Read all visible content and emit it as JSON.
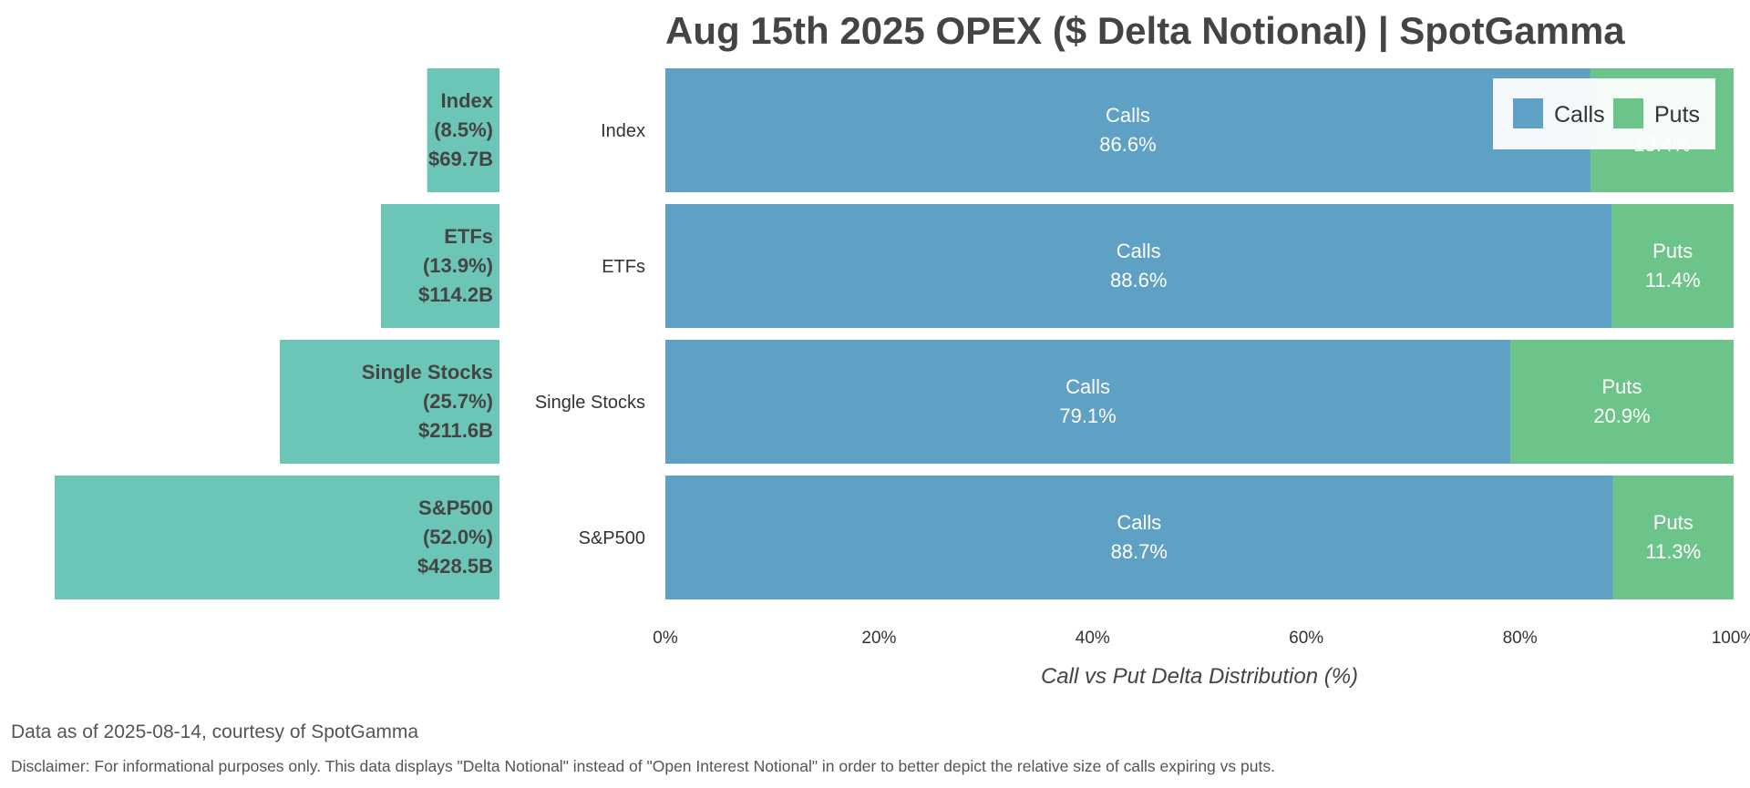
{
  "title": "Aug 15th 2025 OPEX ($ Delta Notional) | SpotGamma",
  "chart_data": [
    {
      "type": "bar",
      "orientation": "horizontal",
      "stacked": true,
      "title": "Aug 15th 2025 OPEX ($ Delta Notional) | SpotGamma",
      "categories": [
        "Index",
        "ETFs",
        "Single Stocks",
        "S&P500"
      ],
      "series": [
        {
          "name": "Calls",
          "color": "#5fa0c5",
          "values": [
            86.6,
            88.6,
            79.1,
            88.7
          ]
        },
        {
          "name": "Puts",
          "color": "#6cc48a",
          "values": [
            13.4,
            11.4,
            20.9,
            11.3
          ]
        }
      ],
      "segment_labels": [
        {
          "top": "Calls",
          "calls": "86.6%",
          "puts_top": "",
          "puts": "13.4%"
        },
        {
          "top": "Calls",
          "calls": "88.6%",
          "puts_top": "Puts",
          "puts": "11.4%"
        },
        {
          "top": "Calls",
          "calls": "79.1%",
          "puts_top": "Puts",
          "puts": "20.9%"
        },
        {
          "top": "Calls",
          "calls": "88.7%",
          "puts_top": "Puts",
          "puts": "11.3%"
        }
      ],
      "xlabel": "Call vs Put Delta Distribution (%)",
      "xlim": [
        0,
        100
      ],
      "xticks": [
        "0%",
        "20%",
        "40%",
        "60%",
        "80%",
        "100%"
      ],
      "legend": {
        "position": "top-right",
        "entries": [
          "Calls",
          "Puts"
        ]
      },
      "grid": false
    },
    {
      "type": "bar",
      "orientation": "horizontal",
      "direction": "right-to-left",
      "color": "#6cc6b8",
      "categories": [
        "Index",
        "ETFs",
        "Single Stocks",
        "S&P500"
      ],
      "values_billion_usd": [
        69.7,
        114.2,
        211.6,
        428.5
      ],
      "share_percent": [
        8.5,
        13.9,
        25.7,
        52.0
      ],
      "labels": [
        [
          "Index",
          "(8.5%)",
          "$69.7B"
        ],
        [
          "ETFs",
          "(13.9%)",
          "$114.2B"
        ],
        [
          "Single Stocks",
          "(25.7%)",
          "$211.6B"
        ],
        [
          "S&P500",
          "(52.0%)",
          "$428.5B"
        ]
      ]
    }
  ],
  "footer": {
    "source": "Data as of 2025-08-14, courtesy of SpotGamma",
    "disclaimer": "Disclaimer: For informational purposes only. This data displays \"Delta Notional\" instead of \"Open Interest Notional\" in order to better depict the relative size of calls expiring vs puts."
  }
}
